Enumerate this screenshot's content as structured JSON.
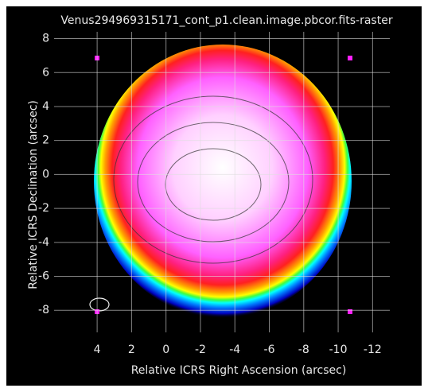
{
  "chart_data": {
    "type": "image",
    "title": "Venus294969315171_cont_p1.clean.image.pbcor.fits-raster",
    "x_label": "Relative ICRS Right Ascension (arcsec)",
    "y_label": "Relative ICRS Declination (arcsec)",
    "xlim": [
      6.5,
      -13
    ],
    "ylim": [
      -9.3,
      8.4
    ],
    "xticks": [
      4,
      2,
      0,
      -2,
      -4,
      -6,
      -8,
      -10,
      -12
    ],
    "yticks": [
      8,
      6,
      4,
      2,
      0,
      -2,
      -4,
      -6,
      -8
    ],
    "grid": true
  }
}
